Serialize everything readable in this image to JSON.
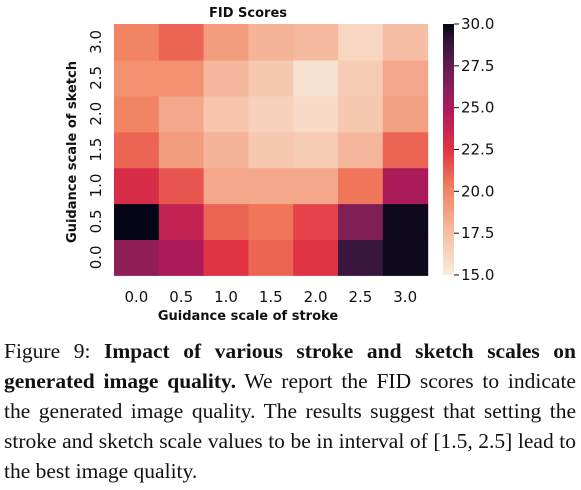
{
  "chart_data": {
    "type": "heatmap",
    "title": "FID Scores",
    "xlabel": "Guidance scale of stroke",
    "ylabel": "Guidance scale of sketch",
    "x_categories": [
      "0.0",
      "0.5",
      "1.0",
      "1.5",
      "2.0",
      "2.5",
      "3.0"
    ],
    "y_categories": [
      "0.0",
      "0.5",
      "1.0",
      "1.5",
      "2.0",
      "2.5",
      "3.0"
    ],
    "values": [
      [
        26.0,
        25.0,
        22.5,
        21.0,
        22.5,
        28.8,
        29.8
      ],
      [
        30.0,
        24.0,
        21.0,
        20.5,
        22.0,
        26.5,
        29.8
      ],
      [
        23.0,
        21.5,
        18.5,
        18.5,
        18.5,
        20.5,
        25.0
      ],
      [
        21.0,
        19.0,
        18.0,
        17.0,
        16.8,
        17.8,
        21.0
      ],
      [
        20.0,
        18.5,
        17.2,
        16.5,
        16.0,
        17.0,
        18.8
      ],
      [
        19.5,
        19.5,
        17.8,
        17.0,
        15.6,
        16.8,
        18.5
      ],
      [
        20.0,
        21.0,
        19.0,
        18.0,
        17.7,
        16.2,
        17.5
      ]
    ],
    "colorbar": {
      "min": 15.0,
      "max": 30.0,
      "ticks": [
        "15.0",
        "17.5",
        "20.0",
        "22.5",
        "25.0",
        "27.5",
        "30.0"
      ]
    },
    "colormap": "rocket_r"
  },
  "caption": {
    "label": "Figure 9:",
    "bold": "Impact of various stroke and sketch scales on generated image quality.",
    "text": "We report the FID scores to indicate the generated image quality. The results suggest that setting the stroke and sketch scale values to be in interval of [1.5, 2.5] lead to the best image quality."
  }
}
